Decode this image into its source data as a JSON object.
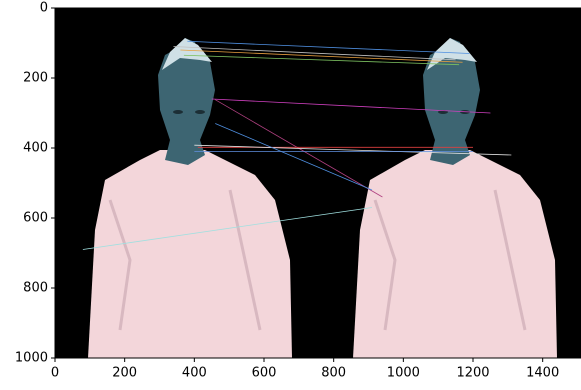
{
  "chart_data": {
    "type": "image",
    "xlim": [
      0,
      1510
    ],
    "ylim": [
      1000,
      0
    ],
    "xticks": [
      0,
      200,
      400,
      600,
      800,
      1000,
      1200,
      1400
    ],
    "yticks": [
      0,
      200,
      400,
      600,
      800,
      1000
    ],
    "matches": [
      {
        "x": [
          380,
          1190
        ],
        "y": [
          95,
          130
        ],
        "color": "#4f8fe0"
      },
      {
        "x": [
          360,
          1170
        ],
        "y": [
          120,
          155
        ],
        "color": "#e8a040"
      },
      {
        "x": [
          370,
          1160
        ],
        "y": [
          135,
          162
        ],
        "color": "#7cc060"
      },
      {
        "x": [
          340,
          1150
        ],
        "y": [
          110,
          148
        ],
        "color": "#c0c0c0"
      },
      {
        "x": [
          450,
          1250
        ],
        "y": [
          260,
          300
        ],
        "color": "#d040c0"
      },
      {
        "x": [
          460,
          940
        ],
        "y": [
          262,
          540
        ],
        "color": "#b04080"
      },
      {
        "x": [
          410,
          1200
        ],
        "y": [
          398,
          398
        ],
        "color": "#e04040"
      },
      {
        "x": [
          400,
          1310
        ],
        "y": [
          392,
          420
        ],
        "color": "#e0e0e0"
      },
      {
        "x": [
          460,
          910
        ],
        "y": [
          330,
          520
        ],
        "color": "#4f8fe0"
      },
      {
        "x": [
          80,
          910
        ],
        "y": [
          690,
          570
        ],
        "color": "#a0e0e0"
      },
      {
        "x": [
          400,
          1200
        ],
        "y": [
          410,
          410
        ],
        "color": "#6090e0"
      }
    ]
  }
}
